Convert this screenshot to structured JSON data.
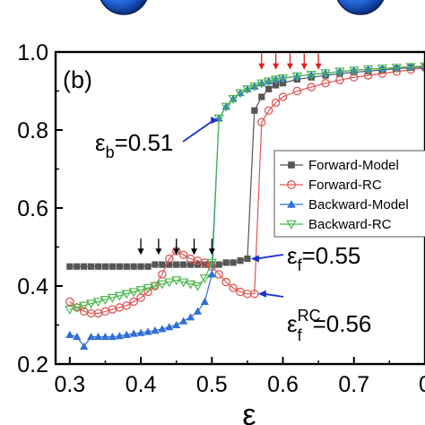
{
  "chart_data": {
    "type": "line",
    "panel_label": "(b)",
    "xlabel": "ε",
    "ylabel": "",
    "xlim": [
      0.28,
      0.8
    ],
    "ylim": [
      0.2,
      1.0
    ],
    "x_ticks": [
      "0.3",
      "0.4",
      "0.5",
      "0.6",
      "0.7",
      "0"
    ],
    "y_ticks": [
      "0.2",
      "0.4",
      "0.6",
      "0.8",
      "1.0"
    ],
    "legend_position": "right",
    "series": [
      {
        "name": "Forward-Model",
        "color": "#555555",
        "marker": "filled-square",
        "x": [
          0.3,
          0.31,
          0.32,
          0.33,
          0.34,
          0.35,
          0.36,
          0.37,
          0.38,
          0.39,
          0.4,
          0.41,
          0.42,
          0.43,
          0.44,
          0.45,
          0.46,
          0.47,
          0.48,
          0.49,
          0.5,
          0.51,
          0.52,
          0.53,
          0.54,
          0.55,
          0.56,
          0.57,
          0.58,
          0.59,
          0.6,
          0.62,
          0.64,
          0.66,
          0.68,
          0.7,
          0.72,
          0.74,
          0.76,
          0.78,
          0.8
        ],
        "y": [
          0.45,
          0.45,
          0.45,
          0.45,
          0.45,
          0.45,
          0.45,
          0.45,
          0.45,
          0.45,
          0.45,
          0.45,
          0.455,
          0.455,
          0.455,
          0.455,
          0.455,
          0.455,
          0.455,
          0.455,
          0.455,
          0.455,
          0.46,
          0.46,
          0.465,
          0.47,
          0.85,
          0.885,
          0.905,
          0.915,
          0.92,
          0.93,
          0.935,
          0.94,
          0.945,
          0.948,
          0.951,
          0.954,
          0.957,
          0.96,
          0.962
        ]
      },
      {
        "name": "Forward-RC",
        "color": "#e05555",
        "marker": "open-circle",
        "x": [
          0.3,
          0.31,
          0.32,
          0.33,
          0.34,
          0.35,
          0.36,
          0.37,
          0.38,
          0.39,
          0.4,
          0.41,
          0.42,
          0.43,
          0.44,
          0.45,
          0.46,
          0.47,
          0.48,
          0.49,
          0.5,
          0.51,
          0.52,
          0.53,
          0.54,
          0.55,
          0.56,
          0.57,
          0.58,
          0.59,
          0.6,
          0.62,
          0.64,
          0.66,
          0.68,
          0.7,
          0.72,
          0.74,
          0.76,
          0.78,
          0.8
        ],
        "y": [
          0.36,
          0.345,
          0.335,
          0.33,
          0.33,
          0.335,
          0.34,
          0.345,
          0.35,
          0.36,
          0.37,
          0.385,
          0.4,
          0.43,
          0.47,
          0.49,
          0.48,
          0.47,
          0.465,
          0.46,
          0.45,
          0.43,
          0.41,
          0.395,
          0.385,
          0.38,
          0.38,
          0.82,
          0.85,
          0.87,
          0.885,
          0.9,
          0.91,
          0.92,
          0.928,
          0.935,
          0.94,
          0.945,
          0.95,
          0.955,
          0.96
        ]
      },
      {
        "name": "Backward-Model",
        "color": "#2f6fd6",
        "marker": "filled-triangle",
        "x": [
          0.3,
          0.31,
          0.32,
          0.33,
          0.34,
          0.35,
          0.36,
          0.37,
          0.38,
          0.39,
          0.4,
          0.41,
          0.42,
          0.43,
          0.44,
          0.45,
          0.46,
          0.47,
          0.48,
          0.49,
          0.5,
          0.51,
          0.52,
          0.53,
          0.54,
          0.55,
          0.56,
          0.57,
          0.58,
          0.59,
          0.6,
          0.62,
          0.64,
          0.66,
          0.68,
          0.7,
          0.72,
          0.74,
          0.76,
          0.78,
          0.8
        ],
        "y": [
          0.275,
          0.27,
          0.245,
          0.27,
          0.27,
          0.27,
          0.27,
          0.272,
          0.275,
          0.278,
          0.28,
          0.283,
          0.286,
          0.29,
          0.295,
          0.3,
          0.31,
          0.32,
          0.335,
          0.36,
          0.43,
          0.83,
          0.86,
          0.88,
          0.895,
          0.905,
          0.912,
          0.92,
          0.925,
          0.93,
          0.933,
          0.938,
          0.942,
          0.946,
          0.95,
          0.953,
          0.956,
          0.958,
          0.96,
          0.962,
          0.964
        ]
      },
      {
        "name": "Backward-RC",
        "color": "#4db84d",
        "marker": "open-down-triangle",
        "x": [
          0.3,
          0.31,
          0.32,
          0.33,
          0.34,
          0.35,
          0.36,
          0.37,
          0.38,
          0.39,
          0.4,
          0.41,
          0.42,
          0.43,
          0.44,
          0.45,
          0.46,
          0.47,
          0.48,
          0.49,
          0.5,
          0.51,
          0.52,
          0.53,
          0.54,
          0.55,
          0.56,
          0.57,
          0.58,
          0.59,
          0.6,
          0.62,
          0.64,
          0.66,
          0.68,
          0.7,
          0.72,
          0.74,
          0.76,
          0.78,
          0.8
        ],
        "y": [
          0.34,
          0.345,
          0.35,
          0.355,
          0.36,
          0.365,
          0.37,
          0.375,
          0.38,
          0.385,
          0.39,
          0.395,
          0.4,
          0.405,
          0.41,
          0.415,
          0.41,
          0.405,
          0.4,
          0.42,
          0.46,
          0.83,
          0.86,
          0.88,
          0.895,
          0.905,
          0.912,
          0.92,
          0.925,
          0.93,
          0.933,
          0.938,
          0.942,
          0.946,
          0.95,
          0.953,
          0.956,
          0.958,
          0.96,
          0.962,
          0.964
        ]
      }
    ],
    "annotations": [
      {
        "text_parts": [
          "ε",
          "b",
          "",
          "=0.51"
        ],
        "points_to": {
          "x": 0.51,
          "y": 0.825
        },
        "arrow_color": "#1a2fd6"
      },
      {
        "text_parts": [
          "ε",
          "f",
          "",
          "=0.55"
        ],
        "points_to": {
          "x": 0.555,
          "y": 0.47
        },
        "arrow_color": "#1a2fd6"
      },
      {
        "text_parts": [
          "ε",
          "f",
          "RC",
          "=0.56"
        ],
        "points_to": {
          "x": 0.565,
          "y": 0.38
        },
        "arrow_color": "#1a2fd6"
      }
    ],
    "black_arrows_x": [
      0.4,
      0.425,
      0.45,
      0.475,
      0.5
    ],
    "black_arrows_y": 0.48,
    "red_arrows_x": [
      0.57,
      0.59,
      0.61,
      0.63,
      0.65
    ],
    "red_arrows_y": 0.95
  }
}
